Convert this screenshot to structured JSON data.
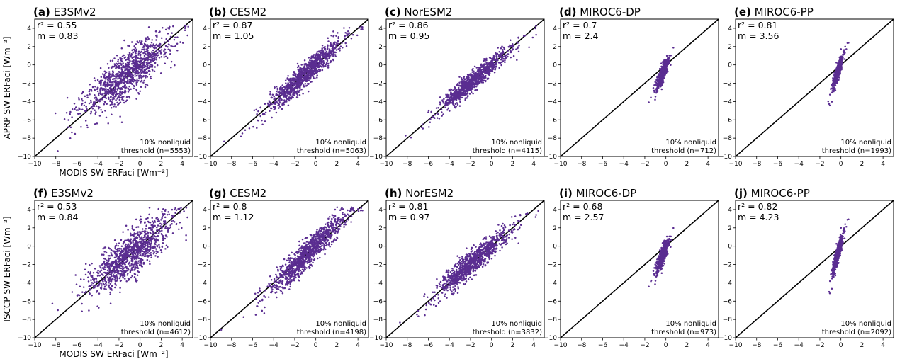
{
  "figure": {
    "row_ylabels": [
      "APRP SW ERFaci [Wm⁻²]",
      "ISCCP SW ERFaci [Wm⁻²]"
    ],
    "xlabel": "MODIS SW ERFaci [Wm⁻²]"
  },
  "colors": {
    "points": "#5a2d91",
    "line": "#000000"
  },
  "chart_data": [
    {
      "type": "scatter",
      "panel": "(a)",
      "title": "E3SMv2",
      "r2": "r² = 0.55",
      "m": "m = 0.83",
      "note1": "10% nonliquid",
      "note2": "threshold (n=5553)",
      "xlim": [
        -10,
        5
      ],
      "ylim": [
        -10,
        5
      ],
      "cloud": {
        "center": [
          -1.2,
          -1.0
        ],
        "spread_x": 1.9,
        "slope": 0.83,
        "scatter": 1.2,
        "n": 1100
      }
    },
    {
      "type": "scatter",
      "panel": "(b)",
      "title": "CESM2",
      "r2": "r² = 0.87",
      "m": "m = 1.05",
      "note1": "10% nonliquid",
      "note2": "threshold (n=5063)",
      "xlim": [
        -10,
        5
      ],
      "ylim": [
        -10,
        5
      ],
      "cloud": {
        "center": [
          -1.0,
          -1.0
        ],
        "spread_x": 1.6,
        "slope": 1.05,
        "scatter": 0.65,
        "n": 1100
      }
    },
    {
      "type": "scatter",
      "panel": "(c)",
      "title": "NorESM2",
      "r2": "r² = 0.86",
      "m": "m = 0.95",
      "note1": "10% nonliquid",
      "note2": "threshold (n=4115)",
      "xlim": [
        -10,
        5
      ],
      "ylim": [
        -10,
        5
      ],
      "cloud": {
        "center": [
          -1.6,
          -1.6
        ],
        "spread_x": 1.5,
        "slope": 0.95,
        "scatter": 0.55,
        "n": 1000
      }
    },
    {
      "type": "scatter",
      "panel": "(d)",
      "title": "MIROC6-DP",
      "r2": "r² = 0.7",
      "m": "m = 2.4",
      "note1": "10% nonliquid",
      "note2": "threshold (n=712)",
      "xlim": [
        -10,
        5
      ],
      "ylim": [
        -10,
        5
      ],
      "cloud": {
        "center": [
          -0.3,
          -0.9
        ],
        "spread_x": 0.3,
        "slope": 2.4,
        "scatter": 0.45,
        "n": 450
      }
    },
    {
      "type": "scatter",
      "panel": "(e)",
      "title": "MIROC6-PP",
      "r2": "r² = 0.81",
      "m": "m = 3.56",
      "note1": "10% nonliquid",
      "note2": "threshold (n=1993)",
      "xlim": [
        -10,
        5
      ],
      "ylim": [
        -10,
        5
      ],
      "cloud": {
        "center": [
          -0.3,
          -0.8
        ],
        "spread_x": 0.25,
        "slope": 3.56,
        "scatter": 0.4,
        "n": 550
      }
    },
    {
      "type": "scatter",
      "panel": "(f)",
      "title": "E3SMv2",
      "r2": "r² = 0.53",
      "m": "m = 0.84",
      "note1": "10% nonliquid",
      "note2": "threshold (n=4612)",
      "xlim": [
        -10,
        5
      ],
      "ylim": [
        -10,
        5
      ],
      "cloud": {
        "center": [
          -1.0,
          -1.0
        ],
        "spread_x": 1.8,
        "slope": 0.84,
        "scatter": 1.2,
        "n": 1100
      }
    },
    {
      "type": "scatter",
      "panel": "(g)",
      "title": "CESM2",
      "r2": "r² = 0.8",
      "m": "m = 1.12",
      "note1": "10% nonliquid",
      "note2": "threshold (n=4198)",
      "xlim": [
        -10,
        5
      ],
      "ylim": [
        -10,
        5
      ],
      "cloud": {
        "center": [
          -0.8,
          -0.8
        ],
        "spread_x": 1.7,
        "slope": 1.12,
        "scatter": 0.75,
        "n": 1100
      }
    },
    {
      "type": "scatter",
      "panel": "(h)",
      "title": "NorESM2",
      "r2": "r² = 0.81",
      "m": "m = 0.97",
      "note1": "10% nonliquid",
      "note2": "threshold (n=3832)",
      "xlim": [
        -10,
        5
      ],
      "ylim": [
        -10,
        5
      ],
      "cloud": {
        "center": [
          -1.7,
          -1.7
        ],
        "spread_x": 1.6,
        "slope": 0.97,
        "scatter": 0.7,
        "n": 1000
      }
    },
    {
      "type": "scatter",
      "panel": "(i)",
      "title": "MIROC6-DP",
      "r2": "r² = 0.68",
      "m": "m = 2.57",
      "note1": "10% nonliquid",
      "note2": "threshold (n=973)",
      "xlim": [
        -10,
        5
      ],
      "ylim": [
        -10,
        5
      ],
      "cloud": {
        "center": [
          -0.3,
          -1.0
        ],
        "spread_x": 0.3,
        "slope": 2.57,
        "scatter": 0.5,
        "n": 450
      }
    },
    {
      "type": "scatter",
      "panel": "(j)",
      "title": "MIROC6-PP",
      "r2": "r² = 0.82",
      "m": "m = 4.23",
      "note1": "10% nonliquid",
      "note2": "threshold (n=2092)",
      "xlim": [
        -10,
        5
      ],
      "ylim": [
        -10,
        5
      ],
      "cloud": {
        "center": [
          -0.3,
          -0.9
        ],
        "spread_x": 0.25,
        "slope": 4.23,
        "scatter": 0.45,
        "n": 550
      }
    }
  ]
}
